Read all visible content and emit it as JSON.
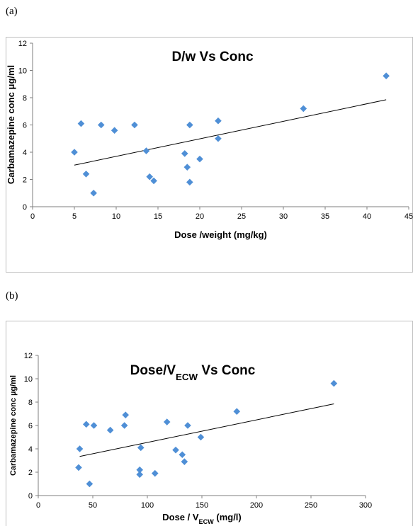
{
  "panels": [
    "(a)",
    "(b)"
  ],
  "colors": {
    "marker": "#4f8fd6",
    "trend": "#000000",
    "axis": "#7f7f7f",
    "border": "#bfbfbf"
  },
  "chart_data": [
    {
      "type": "scatter",
      "title": "D/w Vs Conc",
      "xlabel": "Dose /weight (mg/kg)",
      "ylabel": "Carbamazepine conc μg/ml",
      "xlim": [
        0,
        45
      ],
      "ylim": [
        0,
        12
      ],
      "xticks": [
        0,
        5,
        10,
        15,
        20,
        25,
        30,
        35,
        40,
        45
      ],
      "yticks": [
        0,
        2,
        4,
        6,
        8,
        10,
        12
      ],
      "grid": false,
      "trendline": {
        "x": [
          5,
          42.3
        ],
        "y": [
          3.05,
          7.85
        ]
      },
      "points": [
        [
          5.0,
          4.0
        ],
        [
          5.8,
          6.1
        ],
        [
          6.4,
          2.4
        ],
        [
          7.3,
          1.0
        ],
        [
          8.2,
          6.0
        ],
        [
          9.8,
          5.6
        ],
        [
          12.2,
          6.0
        ],
        [
          13.6,
          4.1
        ],
        [
          14.0,
          2.2
        ],
        [
          14.5,
          1.9
        ],
        [
          18.2,
          3.9
        ],
        [
          18.5,
          2.9
        ],
        [
          18.8,
          6.0
        ],
        [
          18.8,
          1.8
        ],
        [
          20.0,
          3.5
        ],
        [
          22.2,
          6.3
        ],
        [
          22.2,
          5.0
        ],
        [
          32.4,
          7.2
        ],
        [
          42.3,
          9.6
        ]
      ]
    },
    {
      "type": "scatter",
      "title": "Dose/V",
      "title_sub": "ECW",
      "title_suffix": " Vs Conc",
      "xlabel": "Dose / V",
      "xlabel_sub": "ECW",
      "xlabel_suffix": " (mg/l)",
      "ylabel": "Carbamazepine conc µg/ml",
      "xlim": [
        0,
        300
      ],
      "ylim": [
        0,
        12
      ],
      "xticks": [
        0,
        50,
        100,
        150,
        200,
        250,
        300
      ],
      "yticks": [
        0,
        2,
        4,
        6,
        8,
        10,
        12
      ],
      "grid": false,
      "trendline": {
        "x": [
          38,
          271
        ],
        "y": [
          3.35,
          7.85
        ]
      },
      "points": [
        [
          38,
          4.0
        ],
        [
          37,
          2.4
        ],
        [
          44,
          6.1
        ],
        [
          47,
          1.0
        ],
        [
          51,
          6.0
        ],
        [
          66,
          5.6
        ],
        [
          79,
          6.0
        ],
        [
          80,
          6.9
        ],
        [
          93,
          2.2
        ],
        [
          93,
          1.8
        ],
        [
          94,
          4.1
        ],
        [
          107,
          1.9
        ],
        [
          118,
          6.3
        ],
        [
          126,
          3.9
        ],
        [
          132,
          3.5
        ],
        [
          134,
          2.9
        ],
        [
          137,
          6.0
        ],
        [
          149,
          5.0
        ],
        [
          182,
          7.2
        ],
        [
          271,
          9.6
        ]
      ]
    }
  ]
}
